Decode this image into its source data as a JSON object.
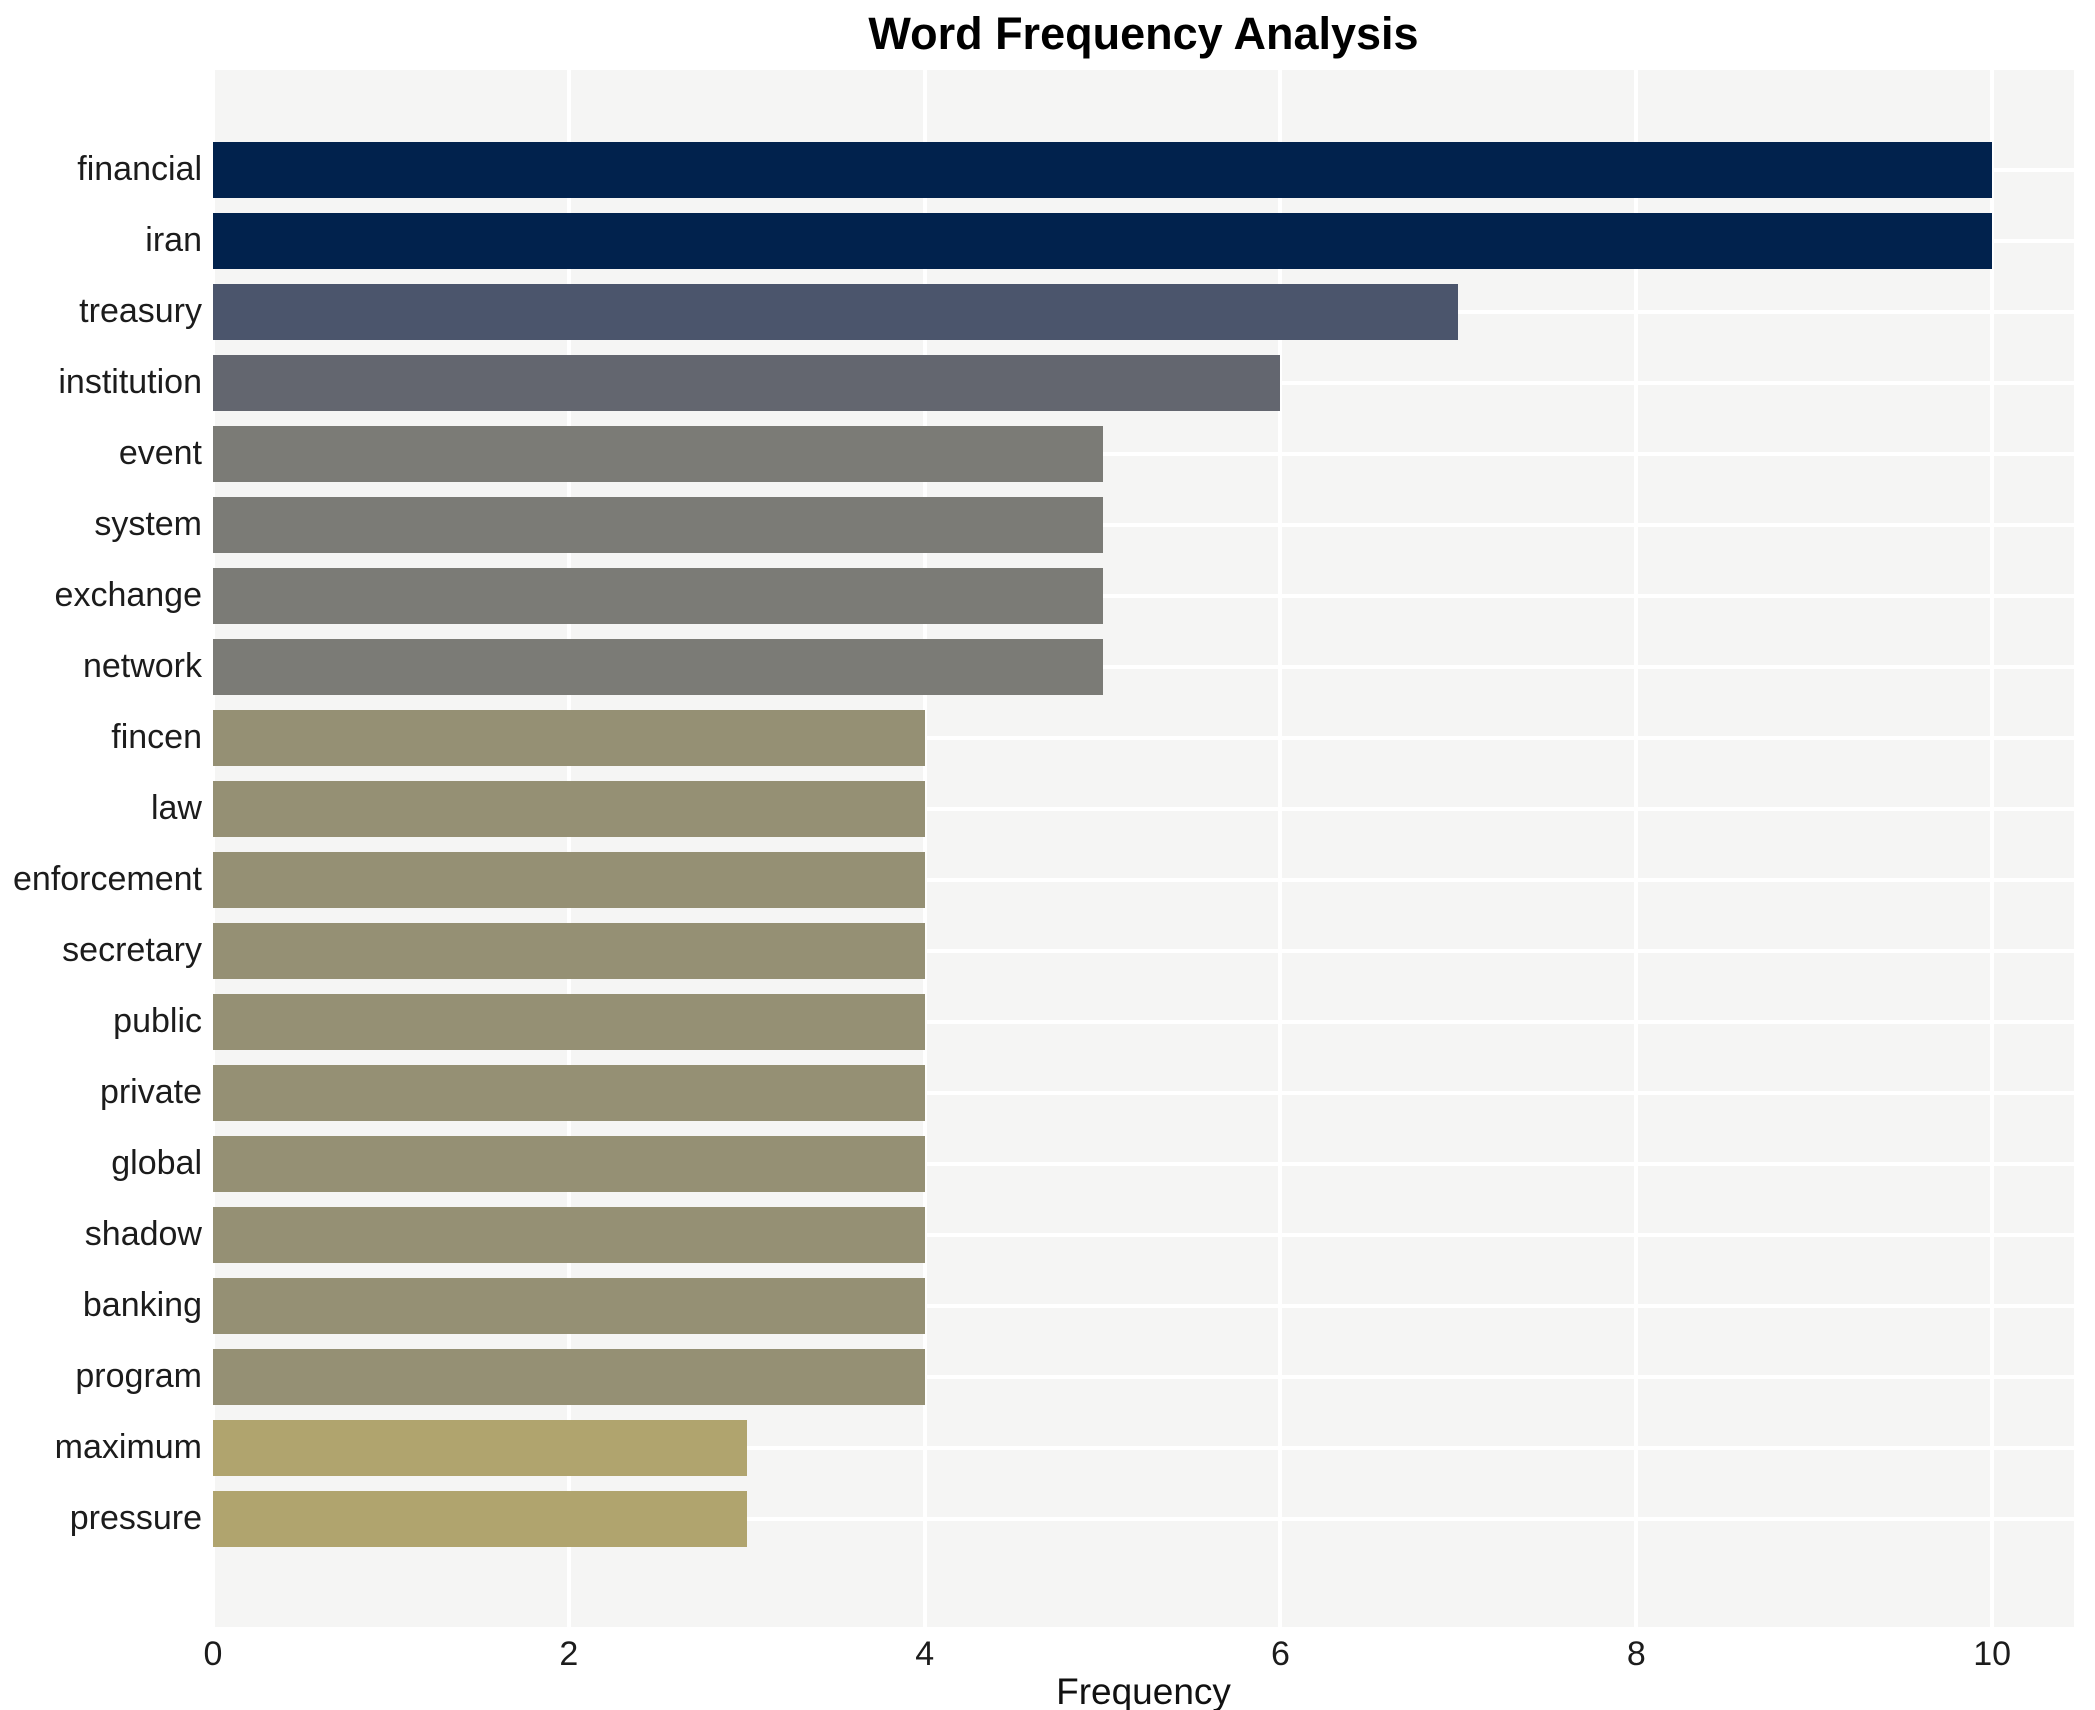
{
  "chart_data": {
    "type": "bar",
    "orientation": "horizontal",
    "title": "Word Frequency Analysis",
    "xlabel": "Frequency",
    "ylabel": "",
    "categories": [
      "financial",
      "iran",
      "treasury",
      "institution",
      "event",
      "system",
      "exchange",
      "network",
      "fincen",
      "law",
      "enforcement",
      "secretary",
      "public",
      "private",
      "global",
      "shadow",
      "banking",
      "program",
      "maximum",
      "pressure"
    ],
    "values": [
      10,
      10,
      7,
      6,
      5,
      5,
      5,
      5,
      4,
      4,
      4,
      4,
      4,
      4,
      4,
      4,
      4,
      4,
      3,
      3
    ],
    "bar_colors": [
      "#01224d",
      "#01224d",
      "#4b556c",
      "#63666f",
      "#7b7b76",
      "#7b7b76",
      "#7b7b76",
      "#7b7b76",
      "#959074",
      "#959074",
      "#959074",
      "#959074",
      "#959074",
      "#959074",
      "#959074",
      "#959074",
      "#959074",
      "#959074",
      "#b0a46e",
      "#b0a46e"
    ],
    "xticks": [
      0,
      2,
      4,
      6,
      8,
      10
    ],
    "xlim": [
      0,
      10.46
    ],
    "grid": true,
    "legend": false,
    "plot_background": "#f5f5f4",
    "grid_color": "#ffffff",
    "figure_background": "#ffffff"
  }
}
